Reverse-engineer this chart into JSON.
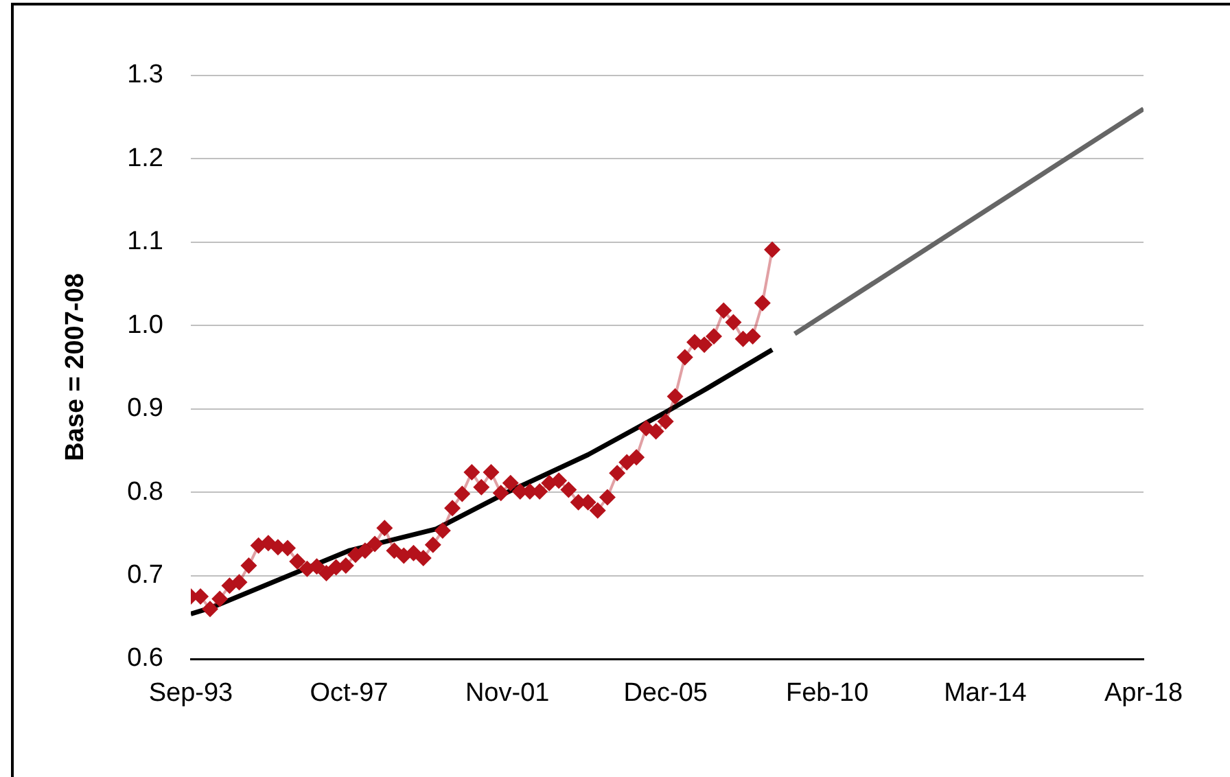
{
  "chart_data": {
    "type": "line",
    "ylabel": "Base = 2007-08",
    "xlim": [
      "1993-09",
      "2018-04"
    ],
    "xticks": [
      {
        "value": "1993-09",
        "label": "Sep-93"
      },
      {
        "value": "1997-10",
        "label": "Oct-97"
      },
      {
        "value": "2001-11",
        "label": "Nov-01"
      },
      {
        "value": "2005-12",
        "label": "Dec-05"
      },
      {
        "value": "2010-02",
        "label": "Feb-10"
      },
      {
        "value": "2014-03",
        "label": "Mar-14"
      },
      {
        "value": "2018-04",
        "label": "Apr-18"
      }
    ],
    "ylim": [
      0.6,
      1.3
    ],
    "yticks": [
      0.6,
      0.7,
      0.8,
      0.9,
      {
        "value": 1,
        "label": "1.0"
      },
      1.1,
      1.2,
      1.3
    ],
    "grid": "y",
    "legend": false,
    "series": [
      {
        "marker": "diamond",
        "color": "#b5121b",
        "x": [
          "1993-09",
          "1993-12",
          "1994-03",
          "1994-06",
          "1994-09",
          "1994-12",
          "1995-03",
          "1995-06",
          "1995-09",
          "1995-12",
          "1996-03",
          "1996-06",
          "1996-09",
          "1996-12",
          "1997-03",
          "1997-06",
          "1997-09",
          "1997-12",
          "1998-03",
          "1998-06",
          "1998-09",
          "1998-12",
          "1999-03",
          "1999-06",
          "1999-09",
          "1999-12",
          "2000-03",
          "2000-06",
          "2000-09",
          "2000-12",
          "2001-03",
          "2001-06",
          "2001-09",
          "2001-12",
          "2002-03",
          "2002-06",
          "2002-09",
          "2002-12",
          "2003-03",
          "2003-06",
          "2003-09",
          "2003-12",
          "2004-03",
          "2004-06",
          "2004-09",
          "2004-12",
          "2005-03",
          "2005-06",
          "2005-09",
          "2005-12",
          "2006-03",
          "2006-06",
          "2006-09",
          "2006-12",
          "2007-03",
          "2007-06",
          "2007-09",
          "2007-12",
          "2008-03",
          "2008-06",
          "2008-09"
        ],
        "values": [
          0.675,
          0.675,
          0.66,
          0.672,
          0.688,
          0.692,
          0.712,
          0.736,
          0.739,
          0.734,
          0.733,
          0.717,
          0.708,
          0.711,
          0.703,
          0.71,
          0.712,
          0.725,
          0.73,
          0.738,
          0.757,
          0.73,
          0.724,
          0.727,
          0.721,
          0.737,
          0.754,
          0.781,
          0.798,
          0.824,
          0.806,
          0.824,
          0.799,
          0.811,
          0.801,
          0.801,
          0.801,
          0.811,
          0.814,
          0.803,
          0.788,
          0.788,
          0.778,
          0.794,
          0.823,
          0.836,
          0.842,
          0.877,
          0.873,
          0.885,
          0.915,
          0.962,
          0.98,
          0.977,
          0.987,
          1.018,
          1.004,
          0.984,
          0.987,
          1.027,
          1.091
        ]
      },
      {
        "marker": "none",
        "color": "#000000",
        "x": [
          "1993-09",
          "1994-03",
          "1997-10",
          "2000-01",
          "2001-11",
          "2003-12",
          "2005-12",
          "2007-01",
          "2008-09"
        ],
        "values": [
          0.654,
          0.661,
          0.73,
          0.756,
          0.8,
          0.845,
          0.896,
          0.925,
          0.971
        ]
      },
      {
        "marker": "none",
        "color": "#666666",
        "x": [
          "2009-04",
          "2018-04"
        ],
        "values": [
          0.99,
          1.26
        ]
      }
    ]
  }
}
